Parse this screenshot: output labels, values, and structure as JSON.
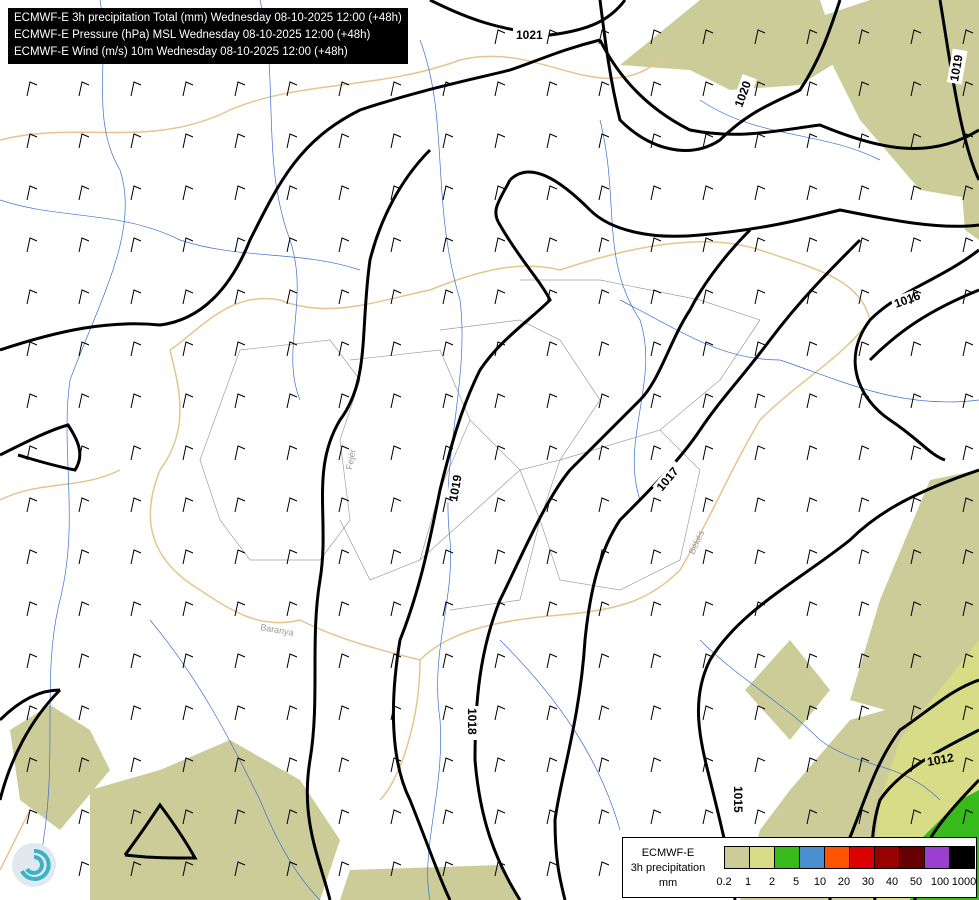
{
  "header": {
    "lines": [
      "ECMWF-E 3h precipitation Total (mm) Wednesday 08-10-2025 12:00 (+48h)",
      "ECMWF-E Pressure (hPa) MSL Wednesday 08-10-2025 12:00 (+48h)",
      "ECMWF-E Wind (m/s) 10m Wednesday 08-10-2025 12:00 (+48h)"
    ]
  },
  "isobar_labels": [
    "1021",
    "1020",
    "1019",
    "1016",
    "1019",
    "1017",
    "1018",
    "1015",
    "1012"
  ],
  "region_labels": [
    "Fejér",
    "Békés",
    "Baranya"
  ],
  "legend": {
    "title_lines": [
      "ECMWF-E",
      "3h precipitation",
      "mm"
    ],
    "ticks": [
      "0.2",
      "1",
      "2",
      "5",
      "10",
      "20",
      "30",
      "40",
      "50",
      "100",
      "1000"
    ],
    "colors": [
      "#cccc99",
      "#d9dc86",
      "#38b91c",
      "#4a8fd1",
      "#ff5500",
      "#dd0000",
      "#990000",
      "#660000",
      "#9a3fcf",
      "#000000"
    ]
  },
  "colors": {
    "precip_light": "#cccc99",
    "precip_med": "#d9dc86",
    "precip_green": "#38b91c",
    "river": "#3a6fd0",
    "border": "#e6c48e",
    "county": "#999999",
    "isobar": "#000000"
  }
}
